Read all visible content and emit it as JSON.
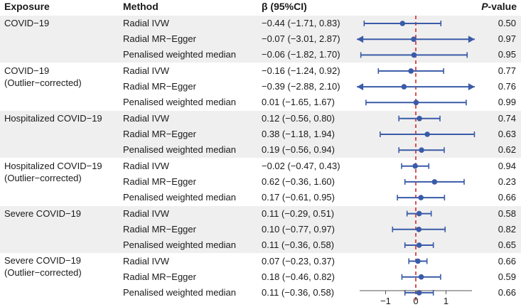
{
  "headers": {
    "exposure": "Exposure",
    "method": "Method",
    "beta": "β (95%CI)",
    "p_italic": "P",
    "p_rest": "-value"
  },
  "colors": {
    "band": "#efefef",
    "marker": "#3a5ba8",
    "zero_line": "#d62728",
    "axis": "#555555"
  },
  "chart_data": {
    "type": "forest",
    "x_ticks": [
      -1,
      0,
      1
    ],
    "x_tick_labels": [
      "−1",
      "0",
      "1"
    ],
    "xlim": [
      -1.95,
      1.95
    ],
    "reference_line": 0,
    "groups": [
      {
        "exposure_lines": [
          "COVID−19"
        ],
        "rows": [
          {
            "method": "Radial IVW",
            "beta_text": "−0.44 (−1.71, 0.83)",
            "p": "0.50",
            "beta": -0.44,
            "lo": -1.71,
            "hi": 0.83
          },
          {
            "method": "Radial MR−Egger",
            "beta_text": "−0.07 (−3.01, 2.87)",
            "p": "0.97",
            "beta": -0.07,
            "lo": -3.01,
            "hi": 2.87
          },
          {
            "method": "Penalised weighted median",
            "beta_text": "−0.06 (−1.82, 1.70)",
            "p": "0.95",
            "beta": -0.06,
            "lo": -1.82,
            "hi": 1.7
          }
        ]
      },
      {
        "exposure_lines": [
          "COVID−19",
          "(Outlier−corrected)"
        ],
        "rows": [
          {
            "method": "Radial IVW",
            "beta_text": "−0.16 (−1.24, 0.92)",
            "p": "0.77",
            "beta": -0.16,
            "lo": -1.24,
            "hi": 0.92
          },
          {
            "method": "Radial MR−Egger",
            "beta_text": "−0.39 (−2.88, 2.10)",
            "p": "0.76",
            "beta": -0.39,
            "lo": -2.88,
            "hi": 2.1
          },
          {
            "method": "Penalised weighted median",
            "beta_text": "0.01 (−1.65, 1.67)",
            "p": "0.99",
            "beta": 0.01,
            "lo": -1.65,
            "hi": 1.67
          }
        ]
      },
      {
        "exposure_lines": [
          "Hospitalized COVID−19"
        ],
        "rows": [
          {
            "method": "Radial IVW",
            "beta_text": "0.12 (−0.56, 0.80)",
            "p": "0.74",
            "beta": 0.12,
            "lo": -0.56,
            "hi": 0.8
          },
          {
            "method": "Radial MR−Egger",
            "beta_text": "0.38 (−1.18, 1.94)",
            "p": "0.63",
            "beta": 0.38,
            "lo": -1.18,
            "hi": 1.94
          },
          {
            "method": "Penalised weighted median",
            "beta_text": "0.19 (−0.56, 0.94)",
            "p": "0.62",
            "beta": 0.19,
            "lo": -0.56,
            "hi": 0.94
          }
        ]
      },
      {
        "exposure_lines": [
          "Hospitalized COVID−19",
          "(Outlier−corrected)"
        ],
        "rows": [
          {
            "method": "Radial IVW",
            "beta_text": "−0.02 (−0.47, 0.43)",
            "p": "0.94",
            "beta": -0.02,
            "lo": -0.47,
            "hi": 0.43
          },
          {
            "method": "Radial MR−Egger",
            "beta_text": "0.62 (−0.36, 1.60)",
            "p": "0.23",
            "beta": 0.62,
            "lo": -0.36,
            "hi": 1.6
          },
          {
            "method": "Penalised weighted median",
            "beta_text": "0.17 (−0.61, 0.95)",
            "p": "0.66",
            "beta": 0.17,
            "lo": -0.61,
            "hi": 0.95
          }
        ]
      },
      {
        "exposure_lines": [
          "Severe COVID−19"
        ],
        "rows": [
          {
            "method": "Radial IVW",
            "beta_text": "0.11 (−0.29, 0.51)",
            "p": "0.58",
            "beta": 0.11,
            "lo": -0.29,
            "hi": 0.51
          },
          {
            "method": "Radial MR−Egger",
            "beta_text": "0.10 (−0.77, 0.97)",
            "p": "0.82",
            "beta": 0.1,
            "lo": -0.77,
            "hi": 0.97
          },
          {
            "method": "Penalised weighted median",
            "beta_text": "0.11 (−0.36, 0.58)",
            "p": "0.65",
            "beta": 0.11,
            "lo": -0.36,
            "hi": 0.58
          }
        ]
      },
      {
        "exposure_lines": [
          "Severe COVID−19",
          "(Outlier−corrected)"
        ],
        "rows": [
          {
            "method": "Radial IVW",
            "beta_text": "0.07 (−0.23, 0.37)",
            "p": "0.66",
            "beta": 0.07,
            "lo": -0.23,
            "hi": 0.37
          },
          {
            "method": "Radial MR−Egger",
            "beta_text": "0.18 (−0.46, 0.82)",
            "p": "0.59",
            "beta": 0.18,
            "lo": -0.46,
            "hi": 0.82
          },
          {
            "method": "Penalised weighted median",
            "beta_text": "0.11 (−0.36, 0.58)",
            "p": "0.66",
            "beta": 0.11,
            "lo": -0.36,
            "hi": 0.58
          }
        ]
      }
    ]
  }
}
